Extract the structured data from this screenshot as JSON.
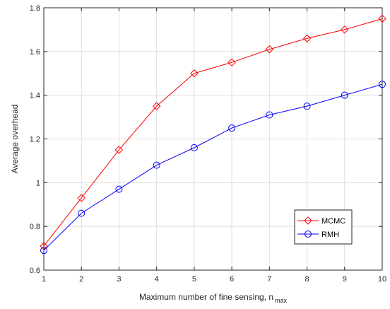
{
  "chart_data": {
    "type": "line",
    "x": [
      1,
      2,
      3,
      4,
      5,
      6,
      7,
      8,
      9,
      10
    ],
    "series": [
      {
        "name": "MCMC",
        "values": [
          0.71,
          0.93,
          1.15,
          1.35,
          1.5,
          1.55,
          1.61,
          1.66,
          1.7,
          1.75
        ],
        "color": "#ff0000",
        "marker": "diamond"
      },
      {
        "name": "RMH",
        "values": [
          0.69,
          0.86,
          0.97,
          1.08,
          1.16,
          1.25,
          1.31,
          1.35,
          1.4,
          1.45
        ],
        "color": "#0000ff",
        "marker": "circle"
      }
    ],
    "xlabel": "Maximum number of fine sensing, n",
    "xlabel_sub": "max",
    "ylabel": "Average overhead",
    "xlim": [
      1,
      10
    ],
    "ylim": [
      0.6,
      1.8
    ],
    "xticks": [
      "1",
      "2",
      "3",
      "4",
      "5",
      "6",
      "7",
      "8",
      "9",
      "10"
    ],
    "yticks": [
      "0.6",
      "0.8",
      "1",
      "1.2",
      "1.4",
      "1.6",
      "1.8"
    ],
    "grid": true,
    "legend_position": "bottom-right"
  }
}
